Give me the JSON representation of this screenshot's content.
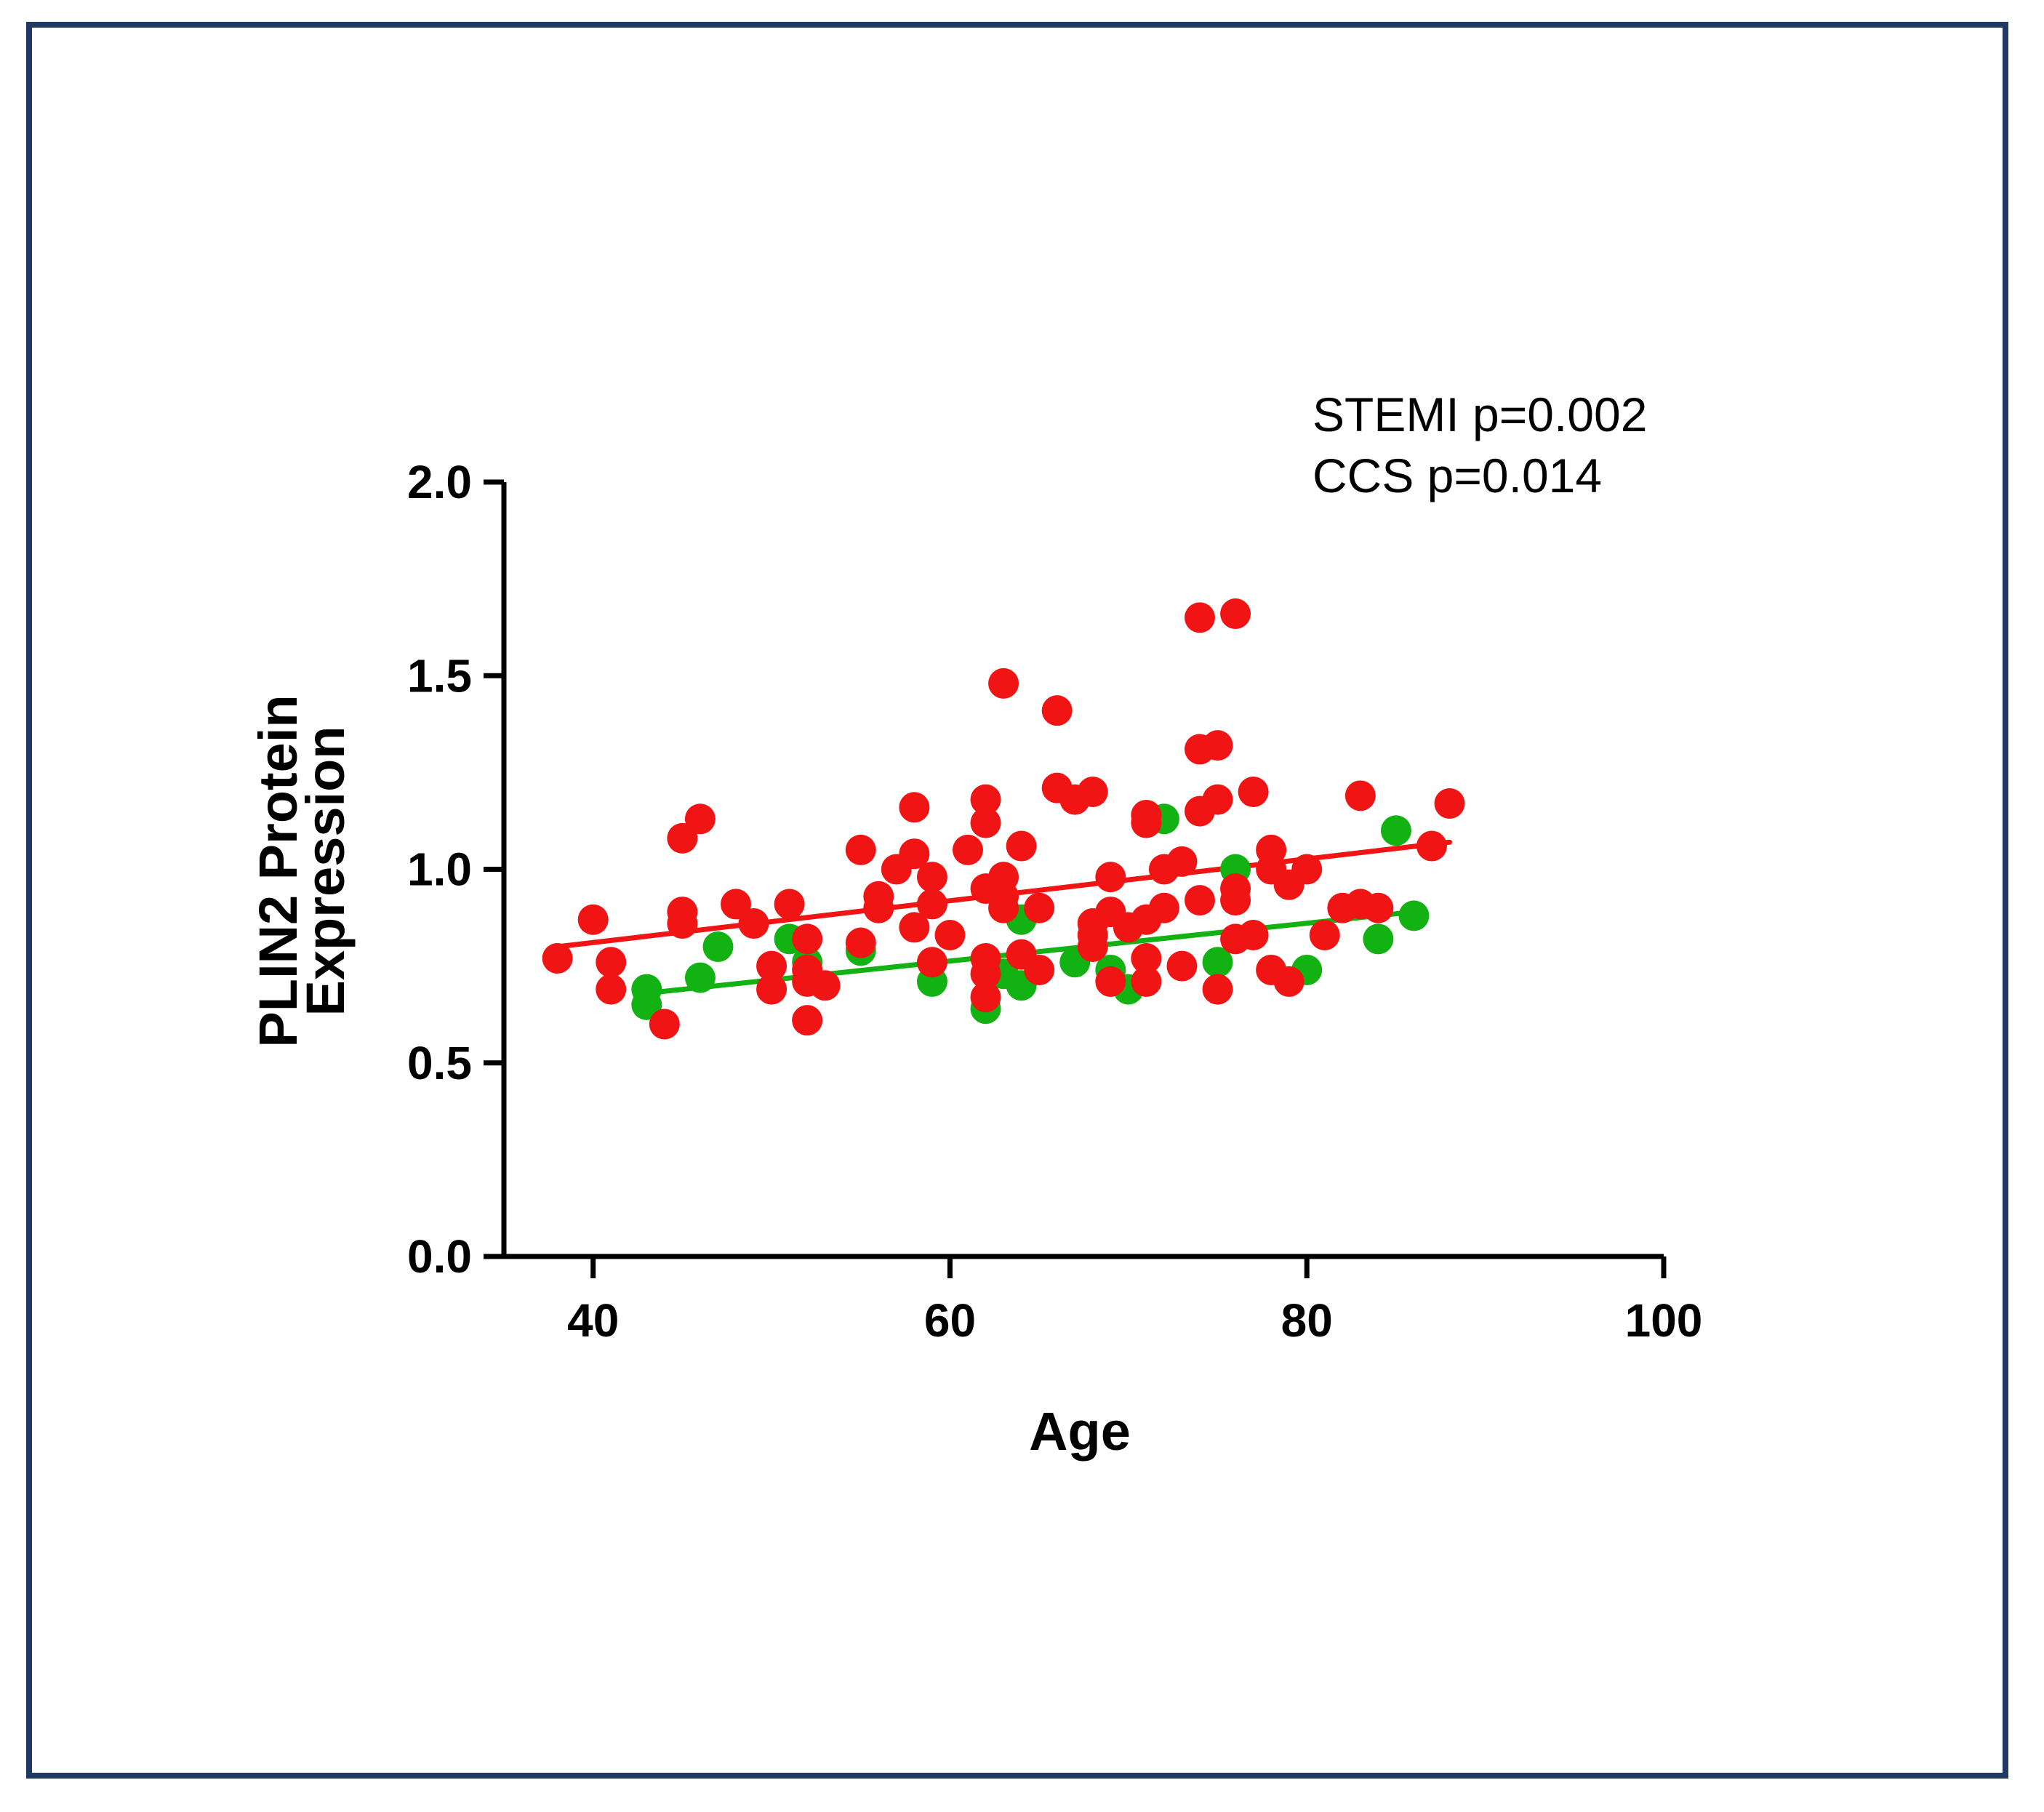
{
  "chart_data": {
    "type": "scatter",
    "title": "",
    "xlabel": "Age",
    "ylabel_lines": [
      "PLIN2 Protein",
      "Expression"
    ],
    "xlim": [
      35,
      100
    ],
    "ylim": [
      0,
      2
    ],
    "xticks": [
      40,
      60,
      80,
      100
    ],
    "xtick_labels": [
      "40",
      "60",
      "80",
      "100"
    ],
    "yticks": [
      0,
      0.5,
      1,
      1.5,
      2
    ],
    "ytick_labels": [
      "0.0",
      "0.5",
      "1.0",
      "1.5",
      "2.0"
    ],
    "grid": false,
    "annotations": [
      "STEMI p=0.002",
      "CCS p=0.014"
    ],
    "series": [
      {
        "name": "CCS",
        "color": "#12b212",
        "fit": [
          [
            43,
            0.68
          ],
          [
            86,
            0.89
          ]
        ],
        "points": [
          [
            43,
            0.69
          ],
          [
            43,
            0.65
          ],
          [
            46,
            0.72
          ],
          [
            47,
            0.8
          ],
          [
            51,
            0.82
          ],
          [
            52,
            0.76
          ],
          [
            55,
            0.79
          ],
          [
            59,
            0.71
          ],
          [
            62,
            0.64
          ],
          [
            63,
            0.73
          ],
          [
            64,
            0.7
          ],
          [
            64,
            0.87
          ],
          [
            67,
            0.76
          ],
          [
            69,
            0.74
          ],
          [
            70,
            0.69
          ],
          [
            72,
            1.13
          ],
          [
            75,
            0.76
          ],
          [
            76,
            1.0
          ],
          [
            80,
            0.74
          ],
          [
            84,
            0.82
          ],
          [
            85,
            1.1
          ],
          [
            86,
            0.88
          ]
        ]
      },
      {
        "name": "STEMI",
        "color": "#f01414",
        "fit": [
          [
            38,
            0.8
          ],
          [
            88,
            1.07
          ]
        ],
        "points": [
          [
            38,
            0.77
          ],
          [
            40,
            0.87
          ],
          [
            41,
            0.76
          ],
          [
            41,
            0.69
          ],
          [
            44,
            0.6
          ],
          [
            45,
            1.08
          ],
          [
            45,
            0.89
          ],
          [
            45,
            0.86
          ],
          [
            46,
            1.13
          ],
          [
            48,
            0.91
          ],
          [
            49,
            0.86
          ],
          [
            50,
            0.75
          ],
          [
            50,
            0.69
          ],
          [
            51,
            0.91
          ],
          [
            52,
            0.82
          ],
          [
            52,
            0.74
          ],
          [
            52,
            0.71
          ],
          [
            52,
            0.61
          ],
          [
            53,
            0.7
          ],
          [
            55,
            1.05
          ],
          [
            55,
            0.81
          ],
          [
            56,
            0.93
          ],
          [
            56,
            0.9
          ],
          [
            57,
            1.0
          ],
          [
            58,
            1.16
          ],
          [
            58,
            1.04
          ],
          [
            58,
            0.85
          ],
          [
            59,
            0.98
          ],
          [
            59,
            0.91
          ],
          [
            59,
            0.76
          ],
          [
            60,
            0.83
          ],
          [
            61,
            1.05
          ],
          [
            62,
            1.18
          ],
          [
            62,
            1.12
          ],
          [
            62,
            0.95
          ],
          [
            62,
            0.77
          ],
          [
            62,
            0.73
          ],
          [
            62,
            0.67
          ],
          [
            63,
            1.48
          ],
          [
            63,
            0.98
          ],
          [
            63,
            0.93
          ],
          [
            63,
            0.9
          ],
          [
            64,
            1.06
          ],
          [
            64,
            0.78
          ],
          [
            65,
            0.9
          ],
          [
            65,
            0.74
          ],
          [
            66,
            1.41
          ],
          [
            66,
            1.21
          ],
          [
            67,
            1.18
          ],
          [
            68,
            1.2
          ],
          [
            68,
            0.86
          ],
          [
            68,
            0.83
          ],
          [
            68,
            0.8
          ],
          [
            69,
            0.98
          ],
          [
            69,
            0.89
          ],
          [
            69,
            0.71
          ],
          [
            70,
            0.85
          ],
          [
            71,
            1.14
          ],
          [
            71,
            1.12
          ],
          [
            71,
            0.87
          ],
          [
            71,
            0.77
          ],
          [
            71,
            0.71
          ],
          [
            72,
            1.0
          ],
          [
            72,
            0.9
          ],
          [
            73,
            1.02
          ],
          [
            73,
            0.75
          ],
          [
            74,
            1.65
          ],
          [
            74,
            1.31
          ],
          [
            74,
            1.15
          ],
          [
            74,
            0.92
          ],
          [
            75,
            1.32
          ],
          [
            75,
            1.18
          ],
          [
            75,
            0.69
          ],
          [
            76,
            1.66
          ],
          [
            76,
            0.95
          ],
          [
            76,
            0.92
          ],
          [
            76,
            0.82
          ],
          [
            77,
            1.2
          ],
          [
            77,
            0.83
          ],
          [
            78,
            1.05
          ],
          [
            78,
            1.0
          ],
          [
            78,
            0.74
          ],
          [
            79,
            0.96
          ],
          [
            79,
            0.71
          ],
          [
            80,
            1.0
          ],
          [
            81,
            0.83
          ],
          [
            82,
            0.9
          ],
          [
            83,
            1.19
          ],
          [
            83,
            0.91
          ],
          [
            84,
            0.9
          ],
          [
            87,
            1.06
          ],
          [
            88,
            1.17
          ]
        ]
      }
    ]
  }
}
